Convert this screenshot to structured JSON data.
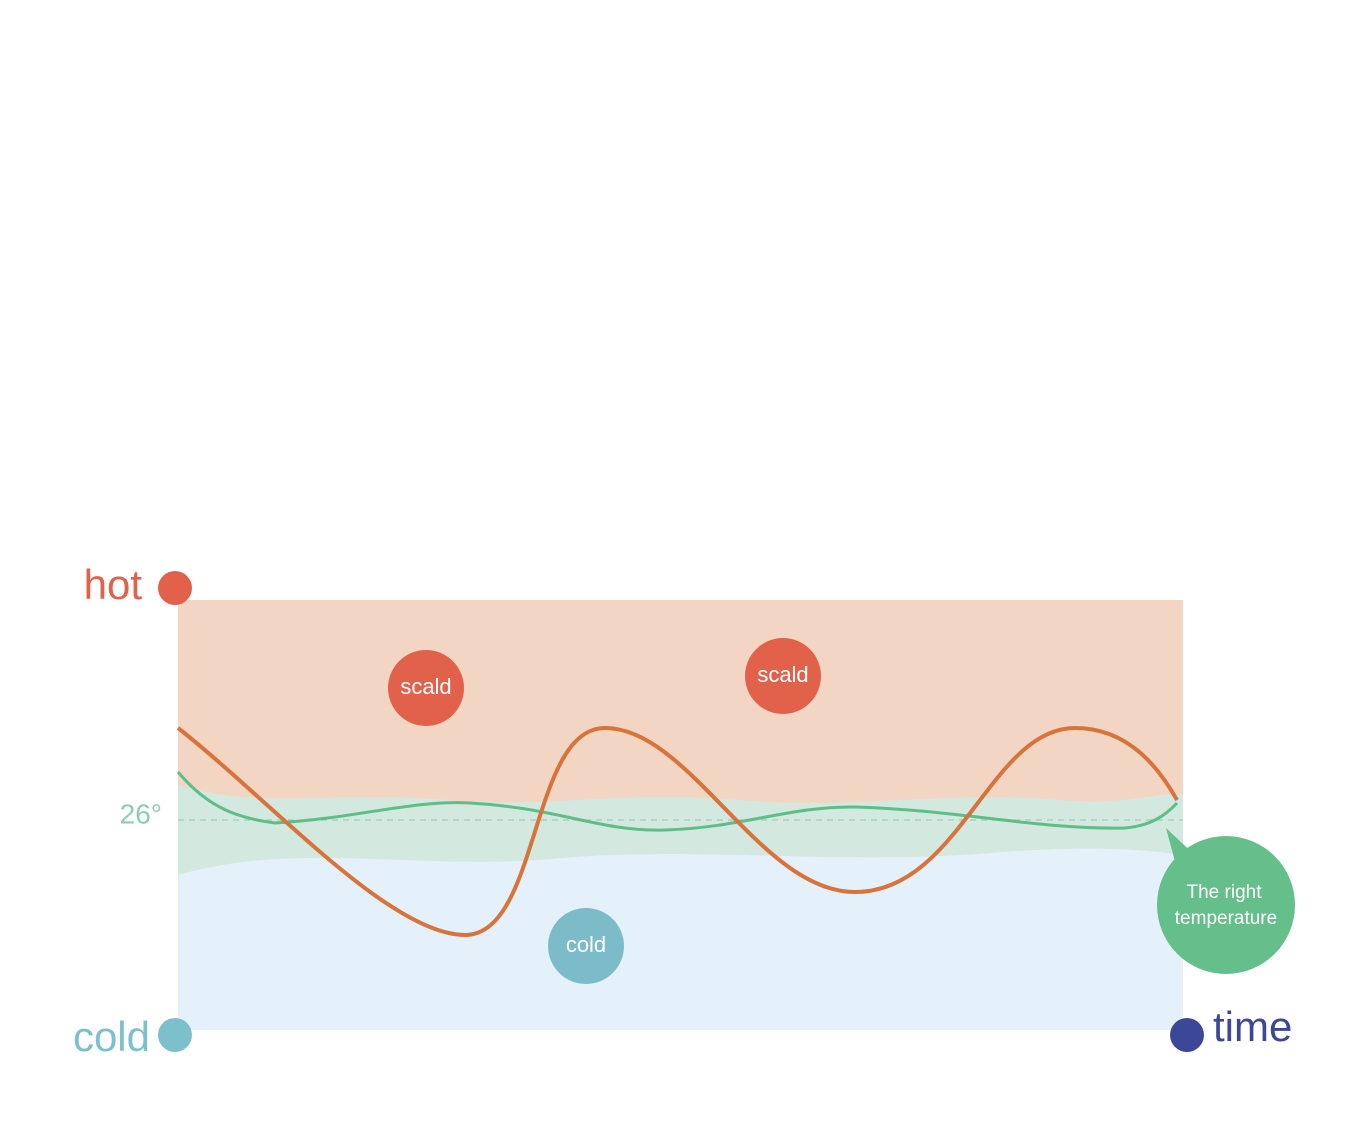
{
  "axes": {
    "top_label": "hot",
    "bottom_label": "cold",
    "x_label": "time",
    "reference_label": "26°"
  },
  "bubbles": [
    {
      "label": "scald"
    },
    {
      "label": "scald"
    },
    {
      "label": "cold"
    }
  ],
  "callout": {
    "lines": [
      "The right",
      "temperature"
    ]
  }
}
